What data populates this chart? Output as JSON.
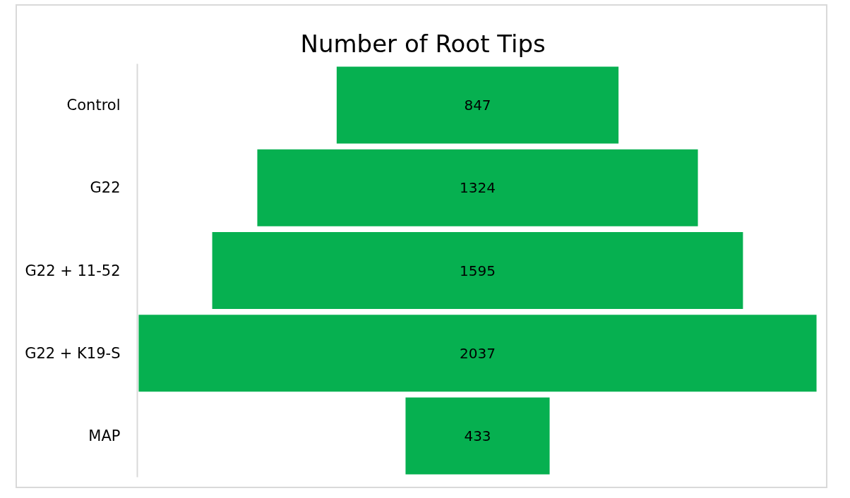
{
  "chart_data": {
    "type": "other",
    "title": "Number of Root Tips",
    "categories": [
      "Control",
      "G22",
      "G22 + 11-52",
      "G22 + K19-S",
      "MAP"
    ],
    "values": [
      847,
      1324,
      1595,
      2037,
      433
    ],
    "color": "#06b050",
    "data_labels": true
  }
}
